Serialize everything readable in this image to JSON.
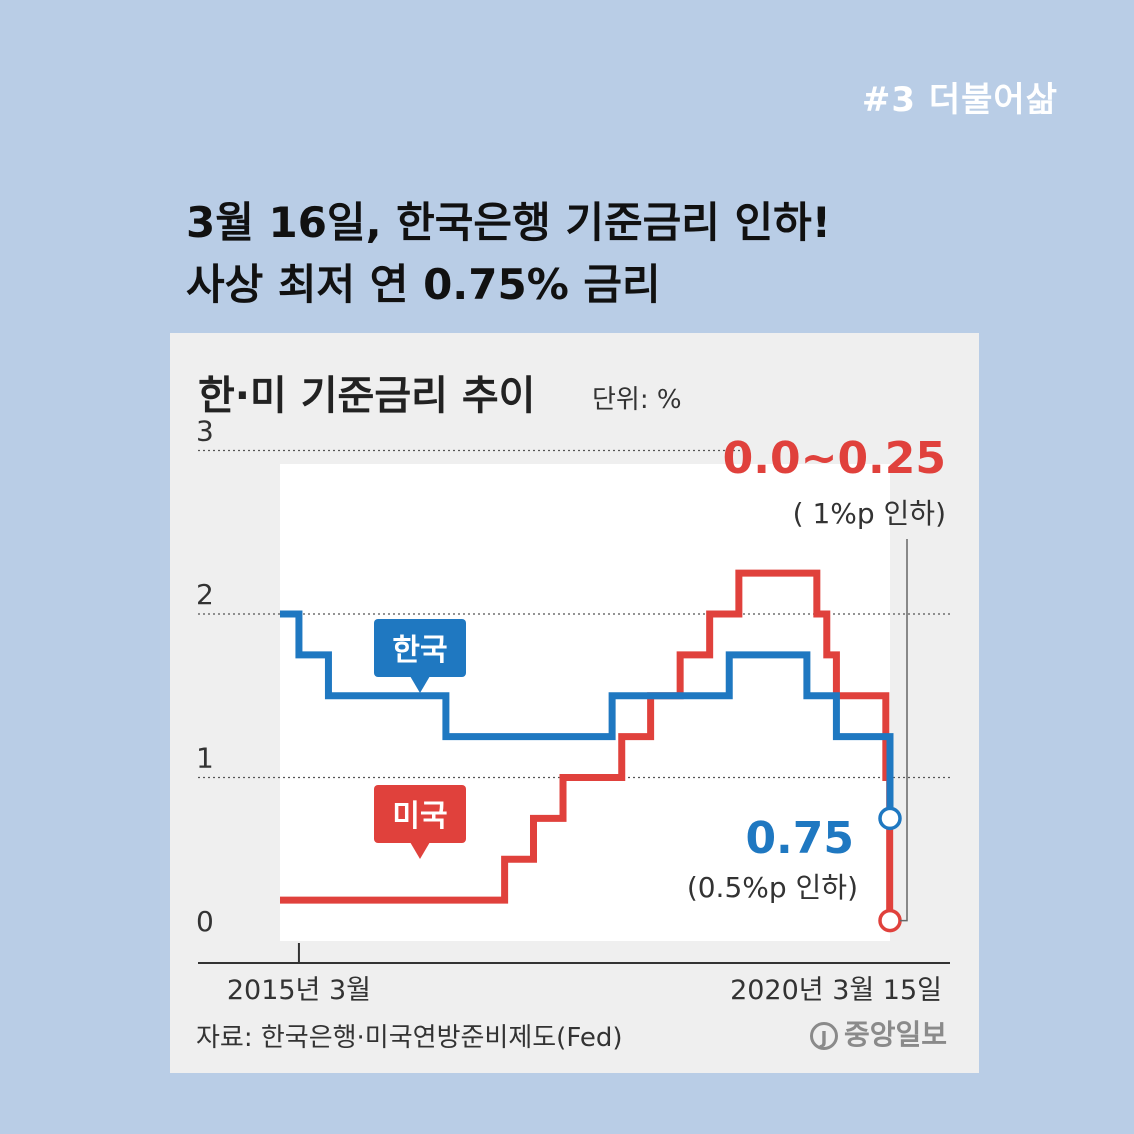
{
  "post": {
    "tag": "#3  더불어삶",
    "headline_line1": "3월 16일, 한국은행 기준금리 인하!",
    "headline_line2": "사상 최저 연 0.75% 금리"
  },
  "card": {
    "title": "한·미 기준금리 추이",
    "unit": "단위: %",
    "source": "자료: 한국은행·미국연방준비제도(Fed)",
    "logo": "중앙일보"
  },
  "colors": {
    "korea": "#1f78c1",
    "us": "#e0413c",
    "background": "#b9cde6",
    "card": "#efefef"
  },
  "chart_data": {
    "type": "line",
    "step": true,
    "ylim": [
      0,
      3
    ],
    "yticks": [
      "3",
      "2",
      "1",
      "0"
    ],
    "x_labels": [
      "2015년 3월",
      "2020년 3월 15일"
    ],
    "x": [
      "2015-01",
      "2015-03",
      "2015-06",
      "2016-06",
      "2016-12",
      "2017-03",
      "2017-06",
      "2017-11",
      "2017-12",
      "2018-03",
      "2018-06",
      "2018-09",
      "2018-11",
      "2018-12",
      "2019-07",
      "2019-08",
      "2019-09",
      "2019-10",
      "2020-03-03",
      "2020-03-15",
      "2020-03-16"
    ],
    "series": [
      {
        "name": "한국",
        "values": [
          2.0,
          1.75,
          1.5,
          1.25,
          1.25,
          1.25,
          1.25,
          1.5,
          1.5,
          1.5,
          1.5,
          1.5,
          1.75,
          1.75,
          1.5,
          1.5,
          1.5,
          1.25,
          1.25,
          1.25,
          0.75
        ]
      },
      {
        "name": "미국",
        "values": [
          0.25,
          0.25,
          0.25,
          0.25,
          0.5,
          0.75,
          1.0,
          1.0,
          1.25,
          1.5,
          1.75,
          2.0,
          2.0,
          2.25,
          2.25,
          2.0,
          1.75,
          1.5,
          1.0,
          0.125,
          0.125
        ]
      }
    ],
    "annotations": {
      "us_value": "0.0~0.25",
      "us_change": "( 1%p 인하)",
      "kr_value": "0.75",
      "kr_change": "(0.5%p 인하)"
    }
  }
}
